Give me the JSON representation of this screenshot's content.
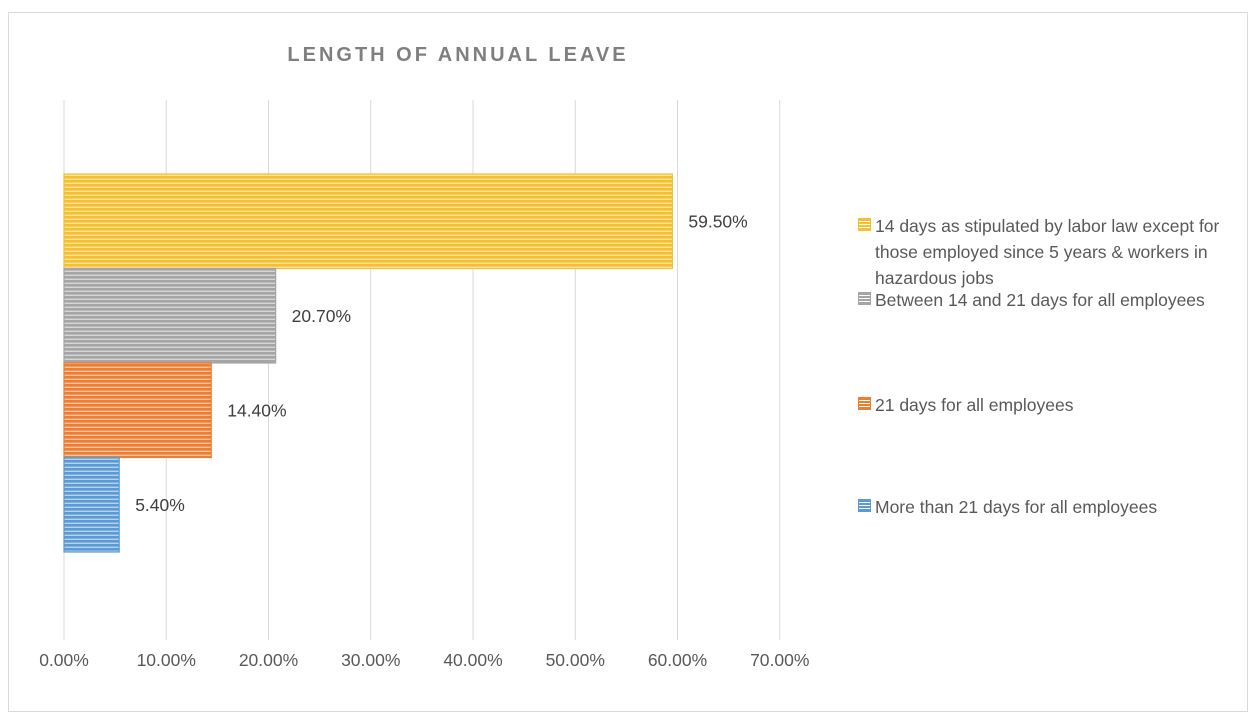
{
  "chart_data": {
    "type": "bar",
    "orientation": "horizontal",
    "title": "LENGTH OF ANNUAL LEAVE",
    "xlabel": "",
    "ylabel": "",
    "xlim": [
      0,
      70
    ],
    "x_ticks": [
      "0.00%",
      "10.00%",
      "20.00%",
      "30.00%",
      "40.00%",
      "50.00%",
      "60.00%",
      "70.00%"
    ],
    "grid": "vertical",
    "legend_position": "right",
    "series": [
      {
        "name": "14 days as stipulated by labor law except for those employed since 5 years & workers in hazardous jobs",
        "value": 59.5,
        "label": "59.50%",
        "color": "#f5c02c"
      },
      {
        "name": "Between 14 and 21 days for all employees",
        "value": 20.7,
        "label": "20.70%",
        "color": "#a5a5a5"
      },
      {
        "name": "21 days for all employees",
        "value": 14.4,
        "label": "14.40%",
        "color": "#ed7d31"
      },
      {
        "name": "More than 21 days for all employees",
        "value": 5.4,
        "label": "5.40%",
        "color": "#5b9bd5"
      }
    ]
  }
}
